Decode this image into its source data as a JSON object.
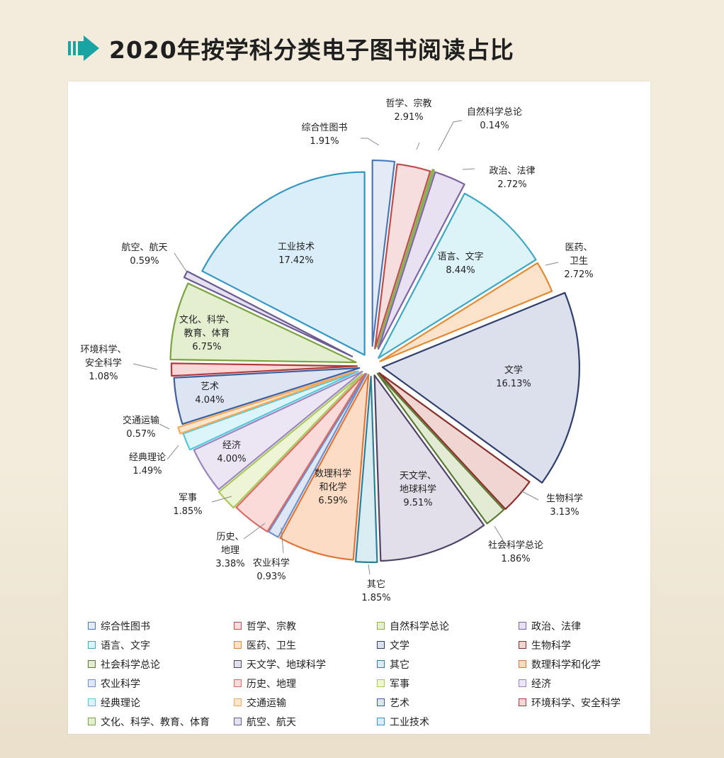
{
  "title": "2020年按学科分类电子图书阅读占比",
  "chart_data": {
    "type": "pie",
    "title": "",
    "legend_position": "bottom",
    "slices": [
      {
        "label": "综合性图书",
        "value": 1.91,
        "value_label": "1.91%",
        "fill": "#e3ebf6",
        "stroke": "#4a78b5"
      },
      {
        "label": "哲学、宗教",
        "value": 2.91,
        "value_label": "2.91%",
        "fill": "#f6dede",
        "stroke": "#bf4b4b"
      },
      {
        "label": "自然科学总论",
        "value": 0.14,
        "value_label": "0.14%",
        "fill": "#e6efd2",
        "stroke": "#8caf4e"
      },
      {
        "label": "政治、法律",
        "value": 2.72,
        "value_label": "2.72%",
        "fill": "#e8e1f1",
        "stroke": "#7e65a4"
      },
      {
        "label": "语言、文字",
        "value": 8.44,
        "value_label": "8.44%",
        "fill": "#dcf3f8",
        "stroke": "#3ea7c4"
      },
      {
        "label": "医药、卫生",
        "value": 2.72,
        "value_label": "2.72%",
        "fill": "#fbe3cb",
        "stroke": "#e28a32"
      },
      {
        "label": "文学",
        "value": 16.13,
        "value_label": "16.13%",
        "fill": "#dcdfec",
        "stroke": "#2f3f6e"
      },
      {
        "label": "生物科学",
        "value": 3.13,
        "value_label": "3.13%",
        "fill": "#f0d6d3",
        "stroke": "#8a2f2a"
      },
      {
        "label": "社会科学总论",
        "value": 1.86,
        "value_label": "1.86%",
        "fill": "#e3ebd5",
        "stroke": "#5a7a33"
      },
      {
        "label": "天文学、地球科学",
        "value": 9.51,
        "value_label": "9.51%",
        "fill": "#e3dfea",
        "stroke": "#4f4466"
      },
      {
        "label": "其它",
        "value": 1.85,
        "value_label": "1.85%",
        "fill": "#d9ecf2",
        "stroke": "#2d7f98"
      },
      {
        "label": "数理科学和化学",
        "value": 6.59,
        "value_label": "6.59%",
        "fill": "#fcdcc4",
        "stroke": "#e07436"
      },
      {
        "label": "农业科学",
        "value": 0.93,
        "value_label": "0.93%",
        "fill": "#dfe7f5",
        "stroke": "#6d8fcb"
      },
      {
        "label": "历史、地理",
        "value": 3.38,
        "value_label": "3.38%",
        "fill": "#fadbd9",
        "stroke": "#d96a64"
      },
      {
        "label": "军事",
        "value": 1.85,
        "value_label": "1.85%",
        "fill": "#eef5d7",
        "stroke": "#a8c85a"
      },
      {
        "label": "经济",
        "value": 4.0,
        "value_label": "4.00%",
        "fill": "#ece6f4",
        "stroke": "#9a85bf"
      },
      {
        "label": "经典理论",
        "value": 1.49,
        "value_label": "1.49%",
        "fill": "#dcf5fa",
        "stroke": "#56c6dc"
      },
      {
        "label": "交通运输",
        "value": 0.57,
        "value_label": "0.57%",
        "fill": "#fde6ce",
        "stroke": "#f4a95a"
      },
      {
        "label": "艺术",
        "value": 4.04,
        "value_label": "4.04%",
        "fill": "#dde4f2",
        "stroke": "#3d5f9e"
      },
      {
        "label": "环境科学、安全科学",
        "value": 1.08,
        "value_label": "1.08%",
        "fill": "#f7d7d7",
        "stroke": "#b23a3a"
      },
      {
        "label": "文化、科学、教育、体育",
        "value": 6.75,
        "value_label": "6.75%",
        "fill": "#e4efd0",
        "stroke": "#7aa341"
      },
      {
        "label": "航空、航天",
        "value": 0.59,
        "value_label": "0.59%",
        "fill": "#e6e1ef",
        "stroke": "#6b5b93"
      },
      {
        "label": "工业技术",
        "value": 17.42,
        "value_label": "17.42%",
        "fill": "#d9eef8",
        "stroke": "#3596c4"
      }
    ],
    "callout_labels": [
      {
        "lines": [
          "综合性图书",
          "1.91%"
        ]
      },
      {
        "lines": [
          "哲学、宗教",
          "2.91%"
        ]
      },
      {
        "lines": [
          "自然科学总论",
          "0.14%"
        ]
      },
      {
        "lines": [
          "政治、法律",
          "2.72%"
        ]
      },
      {
        "lines": [
          "语言、文字",
          "8.44%"
        ]
      },
      {
        "lines": [
          "医药、",
          "卫生",
          "2.72%"
        ]
      },
      {
        "lines": [
          "文学",
          "16.13%"
        ]
      },
      {
        "lines": [
          "生物科学",
          "3.13%"
        ]
      },
      {
        "lines": [
          "社会科学总论",
          "1.86%"
        ]
      },
      {
        "lines": [
          "天文学、",
          "地球科学",
          "9.51%"
        ]
      },
      {
        "lines": [
          "其它",
          "1.85%"
        ]
      },
      {
        "lines": [
          "数理科学",
          "和化学",
          "6.59%"
        ]
      },
      {
        "lines": [
          "农业科学",
          "0.93%"
        ]
      },
      {
        "lines": [
          "历史、",
          "地理",
          "3.38%"
        ]
      },
      {
        "lines": [
          "军事",
          "1.85%"
        ]
      },
      {
        "lines": [
          "经济",
          "4.00%"
        ]
      },
      {
        "lines": [
          "经典理论",
          "1.49%"
        ]
      },
      {
        "lines": [
          "交通运输",
          "0.57%"
        ]
      },
      {
        "lines": [
          "艺术",
          "4.04%"
        ]
      },
      {
        "lines": [
          "环境科学、",
          "安全科学",
          "1.08%"
        ]
      },
      {
        "lines": [
          "文化、科学、",
          "教育、体育",
          "6.75%"
        ]
      },
      {
        "lines": [
          "航空、航天",
          "0.59%"
        ]
      },
      {
        "lines": [
          "工业技术",
          "17.42%"
        ]
      }
    ]
  }
}
